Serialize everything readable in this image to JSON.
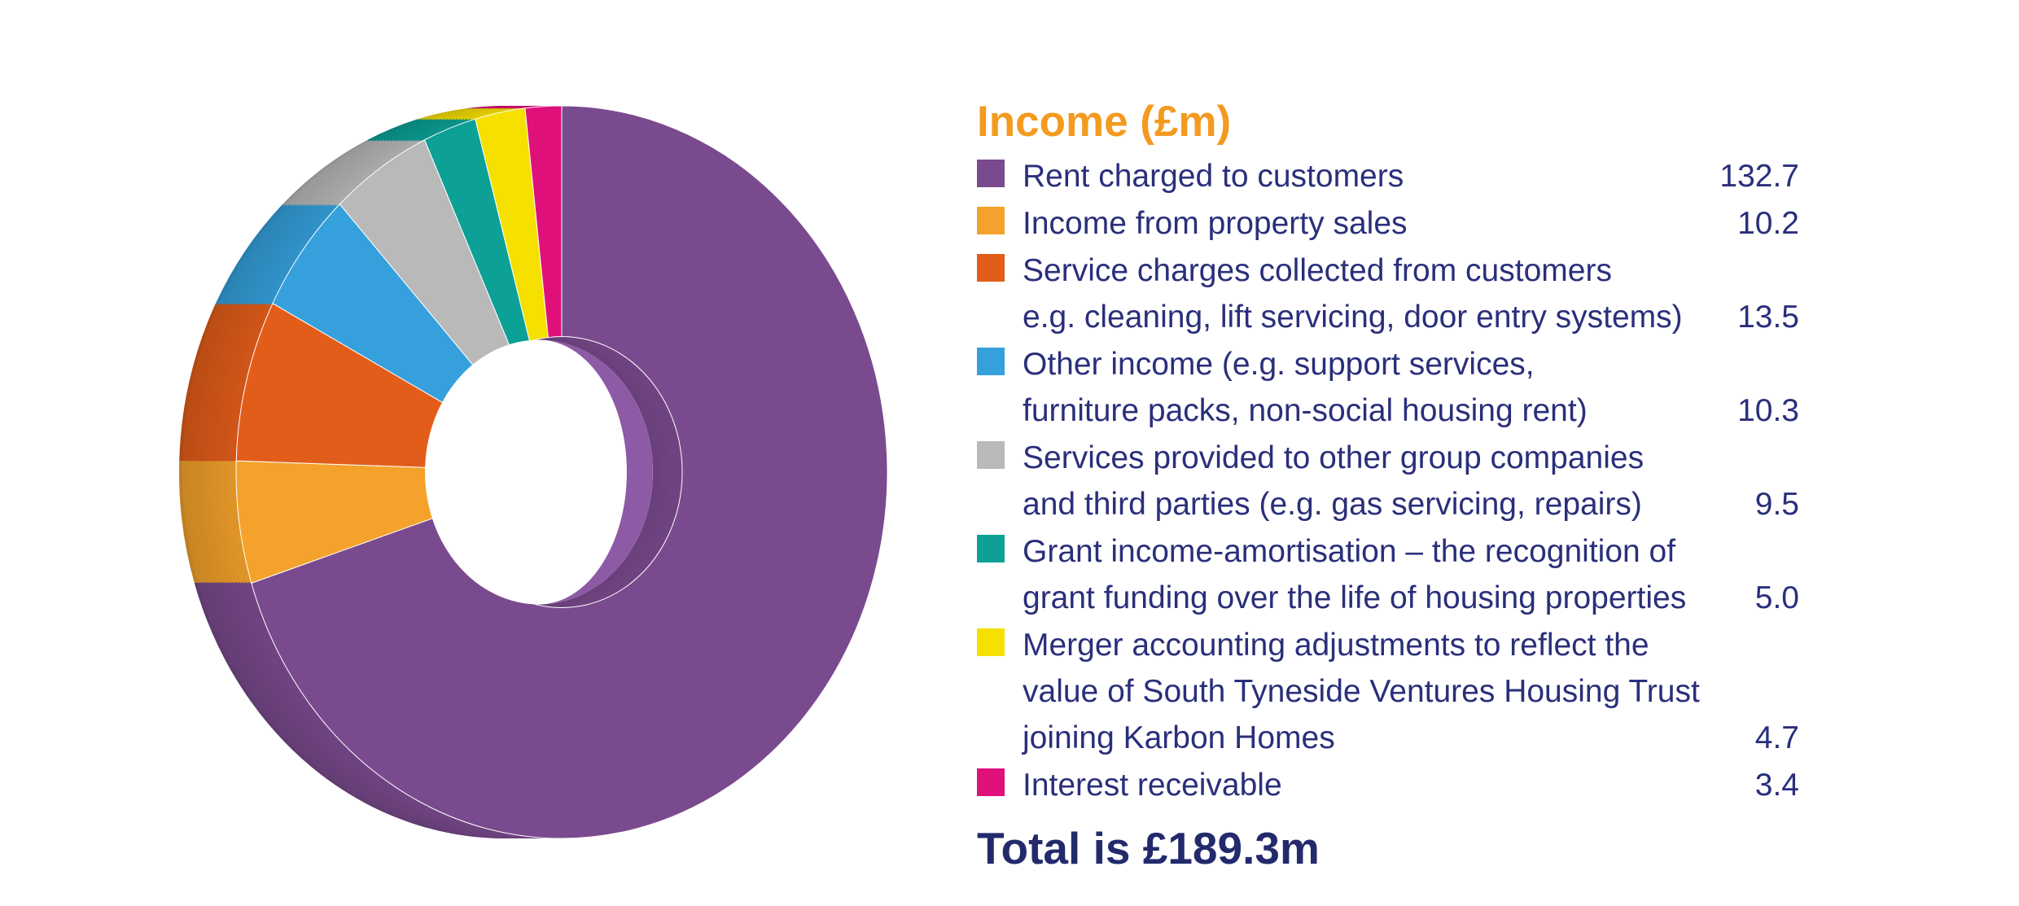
{
  "chart_data": {
    "type": "pie",
    "title": "Income (£m)",
    "total_label": "Total is £189.3m",
    "series": [
      {
        "lines": [
          "Rent charged to customers"
        ],
        "value_label": "132.7",
        "value": 132.7,
        "color": "#7a4a8e"
      },
      {
        "lines": [
          "Income from property sales"
        ],
        "value_label": "10.2",
        "value": 10.2,
        "color": "#f4a22b"
      },
      {
        "lines": [
          "Service charges collected from customers",
          "e.g. cleaning, lift servicing, door entry systems)"
        ],
        "value_label": "13.5",
        "value": 13.5,
        "color": "#e35d1a"
      },
      {
        "lines": [
          "Other income (e.g. support services,",
          "furniture packs, non-social housing rent)"
        ],
        "value_label": "10.3",
        "value": 10.3,
        "color": "#35a0dc"
      },
      {
        "lines": [
          "Services provided to other group companies",
          "and third parties (e.g. gas servicing, repairs)"
        ],
        "value_label": "9.5",
        "value": 9.5,
        "color": "#b9b9b9"
      },
      {
        "lines": [
          "Grant income-amortisation – the recognition of",
          "grant funding over the life of housing properties"
        ],
        "value_label": "5.0",
        "value": 5.0,
        "color": "#0ca096"
      },
      {
        "lines": [
          "Merger accounting adjustments to reflect the",
          "value of South Tyneside Ventures Housing Trust",
          "joining Karbon Homes"
        ],
        "value_label": "4.7",
        "value": 4.7,
        "color": "#f5e000"
      },
      {
        "lines": [
          "Interest receivable"
        ],
        "value_label": "3.4",
        "value": 3.4,
        "color": "#e0107a"
      }
    ]
  }
}
